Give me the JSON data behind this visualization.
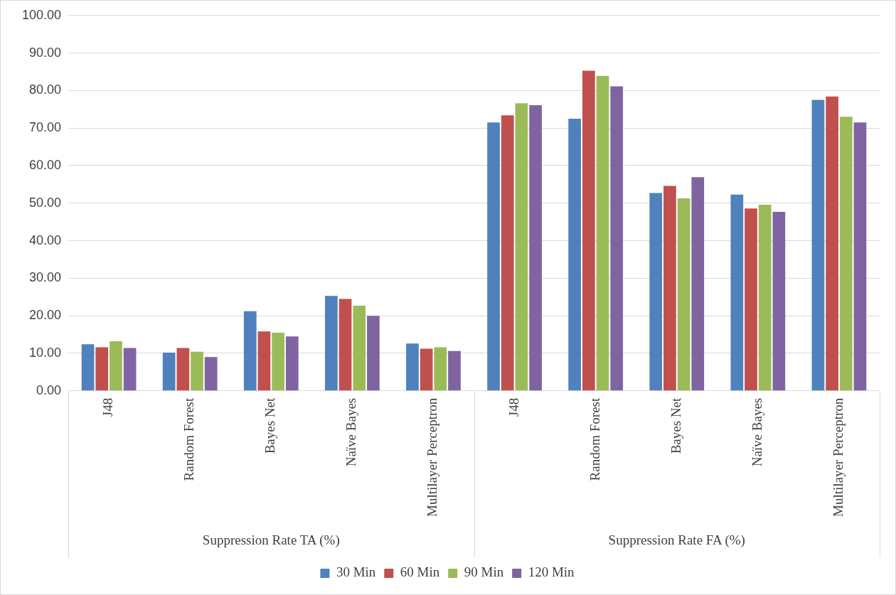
{
  "chart_data": {
    "type": "bar",
    "categories": [
      "J48",
      "Random Forest",
      "Bayes Net",
      "Naïve Bayes",
      "Multilayer Perceptron",
      "J48",
      "Random Forest",
      "Bayes Net",
      "Naïve Bayes",
      "Multilayer Perceptron"
    ],
    "series": [
      {
        "name": "30 Min",
        "color": "#4f81bd",
        "values": [
          12.4,
          10.2,
          21.2,
          25.3,
          12.6,
          71.5,
          72.5,
          52.7,
          52.3,
          77.5
        ]
      },
      {
        "name": "60 Min",
        "color": "#c0504d",
        "values": [
          11.6,
          11.4,
          15.8,
          24.5,
          11.2,
          73.4,
          85.3,
          54.6,
          48.6,
          78.4
        ]
      },
      {
        "name": "90 Min",
        "color": "#9bbb59",
        "values": [
          13.2,
          10.4,
          15.5,
          22.7,
          11.6,
          76.6,
          83.9,
          51.3,
          49.6,
          73.0
        ]
      },
      {
        "name": "120 Min",
        "color": "#8064a2",
        "values": [
          11.4,
          9.0,
          14.5,
          20.0,
          10.6,
          76.1,
          81.1,
          56.9,
          47.7,
          71.5
        ]
      }
    ],
    "annotations": [
      "Suppression Rate TA (%)",
      "Suppression Rate FA (%)"
    ],
    "ylim": [
      0,
      100
    ],
    "yticks": [
      {
        "value": 0,
        "label": "0.00"
      },
      {
        "value": 10,
        "label": "10.00"
      },
      {
        "value": 20,
        "label": "20.00"
      },
      {
        "value": 30,
        "label": "30.00"
      },
      {
        "value": 40,
        "label": "40.00"
      },
      {
        "value": 50,
        "label": "50.00"
      },
      {
        "value": 60,
        "label": "60.00"
      },
      {
        "value": 70,
        "label": "70.00"
      },
      {
        "value": 80,
        "label": "80.00"
      },
      {
        "value": 90,
        "label": "90.00"
      },
      {
        "value": 100,
        "label": "100.00"
      }
    ],
    "grid": "y",
    "legend": "bottom"
  }
}
